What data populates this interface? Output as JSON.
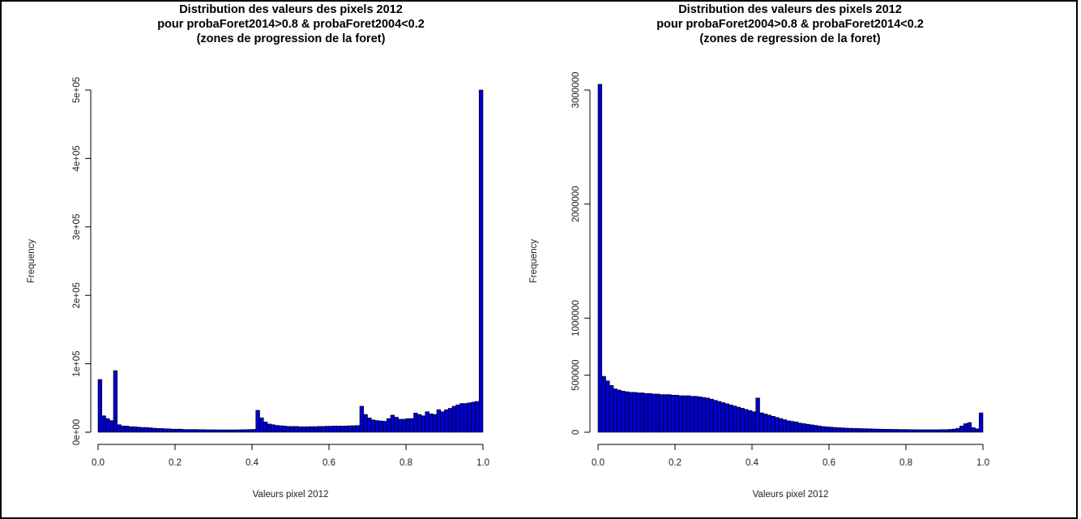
{
  "chart_data": [
    {
      "type": "bar",
      "title": [
        "Distribution des valeurs des pixels 2012",
        "pour probaForet2014>0.8 & probaForet2004<0.2",
        "(zones de progression de la foret)"
      ],
      "xlabel": "Valeurs pixel 2012",
      "ylabel": "Frequency",
      "xlim": [
        0,
        1
      ],
      "ylim": [
        0,
        500000
      ],
      "x_ticks": [
        0,
        0.2,
        0.4,
        0.6,
        0.8,
        1
      ],
      "x_tick_labels": [
        "0.0",
        "0.2",
        "0.4",
        "0.6",
        "0.8",
        "1.0"
      ],
      "y_ticks": [
        0,
        100000,
        200000,
        300000,
        400000,
        500000
      ],
      "y_tick_labels": [
        "0e+00",
        "1e+05",
        "2e+05",
        "3e+05",
        "4e+05",
        "5e+05"
      ],
      "grid": false,
      "bar_color": "#0000cc",
      "bin_width": 0.01,
      "values": [
        77000,
        24000,
        20000,
        17000,
        90000,
        11000,
        9000,
        9000,
        8000,
        8000,
        7500,
        7000,
        7000,
        6500,
        6000,
        5500,
        5500,
        5000,
        5000,
        4500,
        4500,
        4500,
        4000,
        4000,
        4000,
        4000,
        3800,
        3800,
        3600,
        3600,
        3600,
        3500,
        3500,
        3500,
        3500,
        3500,
        3600,
        3700,
        3800,
        4000,
        4200,
        32000,
        21000,
        15000,
        12000,
        11000,
        10000,
        9500,
        9000,
        8500,
        8500,
        8500,
        8000,
        8000,
        8000,
        8200,
        8200,
        8500,
        8500,
        8800,
        8800,
        9000,
        9000,
        9000,
        9200,
        9500,
        9500,
        9800,
        38000,
        26000,
        21000,
        18000,
        17000,
        16500,
        16000,
        20000,
        25000,
        22000,
        19000,
        19000,
        20000,
        20000,
        28000,
        26000,
        24000,
        30000,
        27000,
        26000,
        33000,
        30000,
        33000,
        35000,
        38000,
        40000,
        42000,
        42000,
        43000,
        44000,
        45000,
        500000
      ]
    },
    {
      "type": "bar",
      "title": [
        "Distribution des valeurs des pixels 2012",
        "pour probaForet2004>0.8 & probaForet2014<0.2",
        "(zones de regression de la foret)"
      ],
      "xlabel": "Valeurs pixel 2012",
      "ylabel": "Frequency",
      "xlim": [
        0,
        1
      ],
      "ylim": [
        0,
        3000000
      ],
      "x_ticks": [
        0,
        0.2,
        0.4,
        0.6,
        0.8,
        1
      ],
      "x_tick_labels": [
        "0.0",
        "0.2",
        "0.4",
        "0.6",
        "0.8",
        "1.0"
      ],
      "y_ticks": [
        0,
        500000,
        1000000,
        2000000,
        3000000
      ],
      "y_tick_labels": [
        "0",
        "500000",
        "1000000",
        "2000000",
        "3000000"
      ],
      "grid": false,
      "bar_color": "#0000cc",
      "bin_width": 0.01,
      "values": [
        3050000,
        490000,
        450000,
        410000,
        380000,
        370000,
        360000,
        355000,
        350000,
        350000,
        345000,
        345000,
        340000,
        340000,
        335000,
        335000,
        330000,
        330000,
        330000,
        325000,
        325000,
        320000,
        320000,
        320000,
        315000,
        315000,
        310000,
        305000,
        300000,
        290000,
        280000,
        270000,
        260000,
        250000,
        240000,
        230000,
        220000,
        210000,
        200000,
        190000,
        180000,
        300000,
        170000,
        160000,
        150000,
        140000,
        130000,
        120000,
        110000,
        100000,
        95000,
        90000,
        80000,
        75000,
        70000,
        65000,
        60000,
        55000,
        50000,
        47000,
        45000,
        42000,
        40000,
        38000,
        36000,
        35000,
        34000,
        33000,
        32000,
        31000,
        30000,
        29000,
        28000,
        27000,
        26000,
        26000,
        25000,
        25000,
        24000,
        24000,
        23000,
        23000,
        22000,
        22000,
        22000,
        22000,
        22000,
        22000,
        22000,
        23000,
        23000,
        25000,
        28000,
        35000,
        55000,
        75000,
        85000,
        40000,
        30000,
        170000
      ]
    }
  ]
}
